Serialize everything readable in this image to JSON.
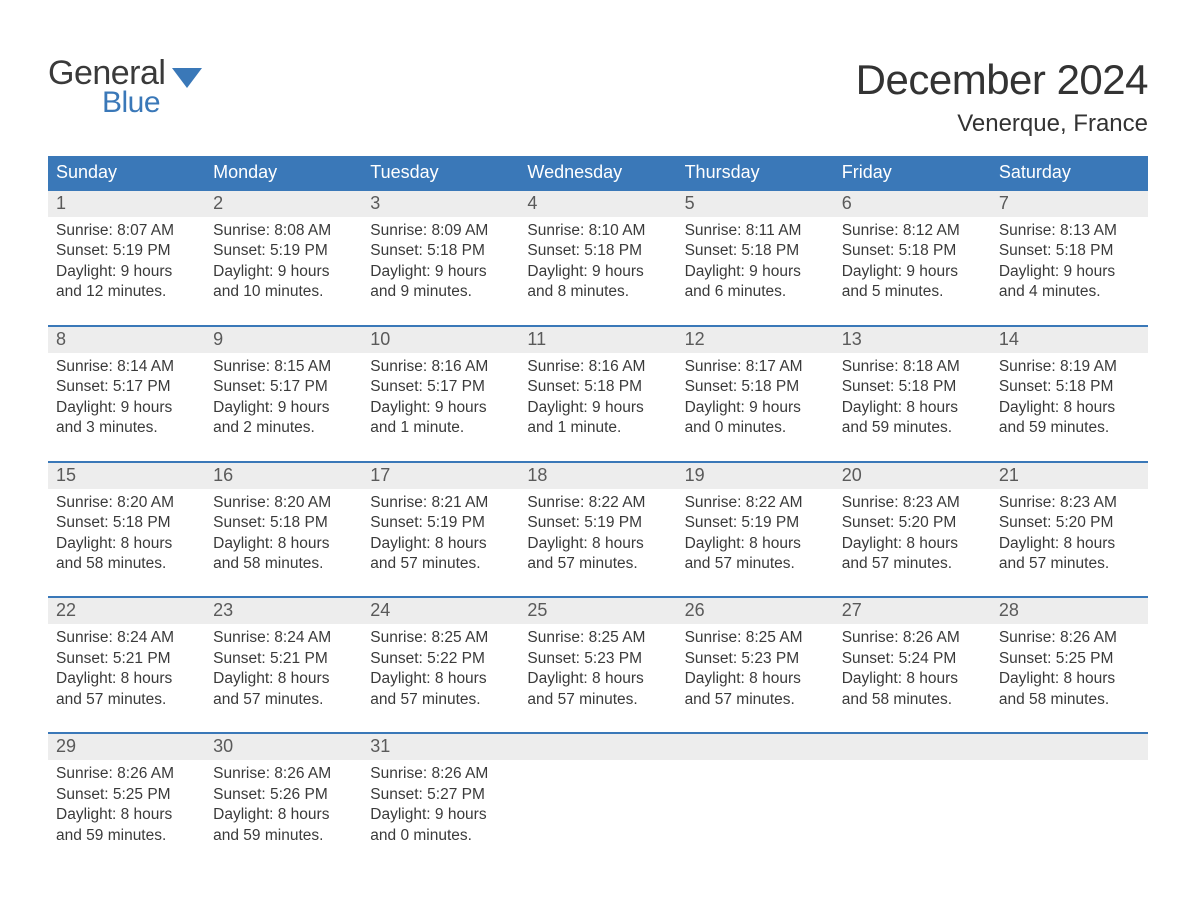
{
  "logo": {
    "top": "General",
    "bottom": "Blue",
    "shape_color": "#3a78b8"
  },
  "title": "December 2024",
  "location": "Venerque, France",
  "colors": {
    "header_bg": "#3a78b8",
    "header_text": "#ffffff",
    "daynum_bg": "#ededed",
    "daynum_text": "#5a5a5a",
    "body_text": "#3a3a3a",
    "week_border": "#3a78b8",
    "page_bg": "#ffffff"
  },
  "typography": {
    "title_fontsize": 42,
    "location_fontsize": 24,
    "weekday_fontsize": 18,
    "daynum_fontsize": 18,
    "body_fontsize": 15.5
  },
  "weekdays": [
    "Sunday",
    "Monday",
    "Tuesday",
    "Wednesday",
    "Thursday",
    "Friday",
    "Saturday"
  ],
  "weeks": [
    [
      {
        "n": "1",
        "sunrise": "Sunrise: 8:07 AM",
        "sunset": "Sunset: 5:19 PM",
        "day1": "Daylight: 9 hours",
        "day2": "and 12 minutes."
      },
      {
        "n": "2",
        "sunrise": "Sunrise: 8:08 AM",
        "sunset": "Sunset: 5:19 PM",
        "day1": "Daylight: 9 hours",
        "day2": "and 10 minutes."
      },
      {
        "n": "3",
        "sunrise": "Sunrise: 8:09 AM",
        "sunset": "Sunset: 5:18 PM",
        "day1": "Daylight: 9 hours",
        "day2": "and 9 minutes."
      },
      {
        "n": "4",
        "sunrise": "Sunrise: 8:10 AM",
        "sunset": "Sunset: 5:18 PM",
        "day1": "Daylight: 9 hours",
        "day2": "and 8 minutes."
      },
      {
        "n": "5",
        "sunrise": "Sunrise: 8:11 AM",
        "sunset": "Sunset: 5:18 PM",
        "day1": "Daylight: 9 hours",
        "day2": "and 6 minutes."
      },
      {
        "n": "6",
        "sunrise": "Sunrise: 8:12 AM",
        "sunset": "Sunset: 5:18 PM",
        "day1": "Daylight: 9 hours",
        "day2": "and 5 minutes."
      },
      {
        "n": "7",
        "sunrise": "Sunrise: 8:13 AM",
        "sunset": "Sunset: 5:18 PM",
        "day1": "Daylight: 9 hours",
        "day2": "and 4 minutes."
      }
    ],
    [
      {
        "n": "8",
        "sunrise": "Sunrise: 8:14 AM",
        "sunset": "Sunset: 5:17 PM",
        "day1": "Daylight: 9 hours",
        "day2": "and 3 minutes."
      },
      {
        "n": "9",
        "sunrise": "Sunrise: 8:15 AM",
        "sunset": "Sunset: 5:17 PM",
        "day1": "Daylight: 9 hours",
        "day2": "and 2 minutes."
      },
      {
        "n": "10",
        "sunrise": "Sunrise: 8:16 AM",
        "sunset": "Sunset: 5:17 PM",
        "day1": "Daylight: 9 hours",
        "day2": "and 1 minute."
      },
      {
        "n": "11",
        "sunrise": "Sunrise: 8:16 AM",
        "sunset": "Sunset: 5:18 PM",
        "day1": "Daylight: 9 hours",
        "day2": "and 1 minute."
      },
      {
        "n": "12",
        "sunrise": "Sunrise: 8:17 AM",
        "sunset": "Sunset: 5:18 PM",
        "day1": "Daylight: 9 hours",
        "day2": "and 0 minutes."
      },
      {
        "n": "13",
        "sunrise": "Sunrise: 8:18 AM",
        "sunset": "Sunset: 5:18 PM",
        "day1": "Daylight: 8 hours",
        "day2": "and 59 minutes."
      },
      {
        "n": "14",
        "sunrise": "Sunrise: 8:19 AM",
        "sunset": "Sunset: 5:18 PM",
        "day1": "Daylight: 8 hours",
        "day2": "and 59 minutes."
      }
    ],
    [
      {
        "n": "15",
        "sunrise": "Sunrise: 8:20 AM",
        "sunset": "Sunset: 5:18 PM",
        "day1": "Daylight: 8 hours",
        "day2": "and 58 minutes."
      },
      {
        "n": "16",
        "sunrise": "Sunrise: 8:20 AM",
        "sunset": "Sunset: 5:18 PM",
        "day1": "Daylight: 8 hours",
        "day2": "and 58 minutes."
      },
      {
        "n": "17",
        "sunrise": "Sunrise: 8:21 AM",
        "sunset": "Sunset: 5:19 PM",
        "day1": "Daylight: 8 hours",
        "day2": "and 57 minutes."
      },
      {
        "n": "18",
        "sunrise": "Sunrise: 8:22 AM",
        "sunset": "Sunset: 5:19 PM",
        "day1": "Daylight: 8 hours",
        "day2": "and 57 minutes."
      },
      {
        "n": "19",
        "sunrise": "Sunrise: 8:22 AM",
        "sunset": "Sunset: 5:19 PM",
        "day1": "Daylight: 8 hours",
        "day2": "and 57 minutes."
      },
      {
        "n": "20",
        "sunrise": "Sunrise: 8:23 AM",
        "sunset": "Sunset: 5:20 PM",
        "day1": "Daylight: 8 hours",
        "day2": "and 57 minutes."
      },
      {
        "n": "21",
        "sunrise": "Sunrise: 8:23 AM",
        "sunset": "Sunset: 5:20 PM",
        "day1": "Daylight: 8 hours",
        "day2": "and 57 minutes."
      }
    ],
    [
      {
        "n": "22",
        "sunrise": "Sunrise: 8:24 AM",
        "sunset": "Sunset: 5:21 PM",
        "day1": "Daylight: 8 hours",
        "day2": "and 57 minutes."
      },
      {
        "n": "23",
        "sunrise": "Sunrise: 8:24 AM",
        "sunset": "Sunset: 5:21 PM",
        "day1": "Daylight: 8 hours",
        "day2": "and 57 minutes."
      },
      {
        "n": "24",
        "sunrise": "Sunrise: 8:25 AM",
        "sunset": "Sunset: 5:22 PM",
        "day1": "Daylight: 8 hours",
        "day2": "and 57 minutes."
      },
      {
        "n": "25",
        "sunrise": "Sunrise: 8:25 AM",
        "sunset": "Sunset: 5:23 PM",
        "day1": "Daylight: 8 hours",
        "day2": "and 57 minutes."
      },
      {
        "n": "26",
        "sunrise": "Sunrise: 8:25 AM",
        "sunset": "Sunset: 5:23 PM",
        "day1": "Daylight: 8 hours",
        "day2": "and 57 minutes."
      },
      {
        "n": "27",
        "sunrise": "Sunrise: 8:26 AM",
        "sunset": "Sunset: 5:24 PM",
        "day1": "Daylight: 8 hours",
        "day2": "and 58 minutes."
      },
      {
        "n": "28",
        "sunrise": "Sunrise: 8:26 AM",
        "sunset": "Sunset: 5:25 PM",
        "day1": "Daylight: 8 hours",
        "day2": "and 58 minutes."
      }
    ],
    [
      {
        "n": "29",
        "sunrise": "Sunrise: 8:26 AM",
        "sunset": "Sunset: 5:25 PM",
        "day1": "Daylight: 8 hours",
        "day2": "and 59 minutes."
      },
      {
        "n": "30",
        "sunrise": "Sunrise: 8:26 AM",
        "sunset": "Sunset: 5:26 PM",
        "day1": "Daylight: 8 hours",
        "day2": "and 59 minutes."
      },
      {
        "n": "31",
        "sunrise": "Sunrise: 8:26 AM",
        "sunset": "Sunset: 5:27 PM",
        "day1": "Daylight: 9 hours",
        "day2": "and 0 minutes."
      },
      null,
      null,
      null,
      null
    ]
  ]
}
